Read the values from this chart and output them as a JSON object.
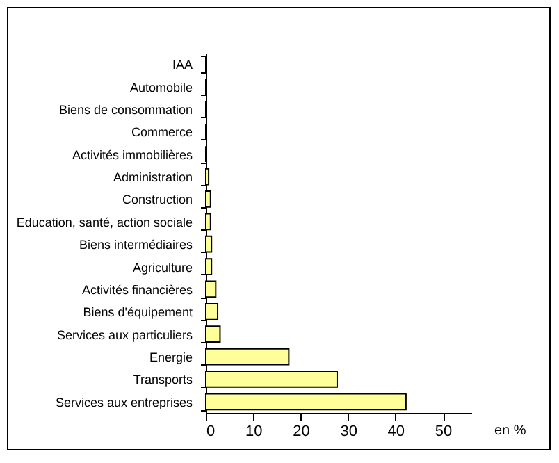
{
  "chart_data": {
    "type": "bar",
    "orientation": "horizontal",
    "xlabel": "en %",
    "categories": [
      "IAA",
      "Automobile",
      "Biens de consommation",
      "Commerce",
      "Activités immobilières",
      "Administration",
      "Construction",
      "Education, santé, action sociale",
      "Biens intermédiaires",
      "Agriculture",
      "Activités financières",
      "Biens d'équipement",
      "Services aux particuliers",
      "Energie",
      "Transports",
      "Services aux entreprises"
    ],
    "values": [
      0,
      0,
      0,
      0,
      0,
      0.6,
      1.0,
      1.0,
      1.2,
      1.2,
      2.1,
      2.5,
      3.0,
      17.5,
      27.7,
      42.2
    ],
    "color": "#ffff99",
    "xlim": [
      0,
      56
    ],
    "xticks": [
      0,
      10,
      20,
      30,
      40,
      50
    ],
    "grid": false
  }
}
